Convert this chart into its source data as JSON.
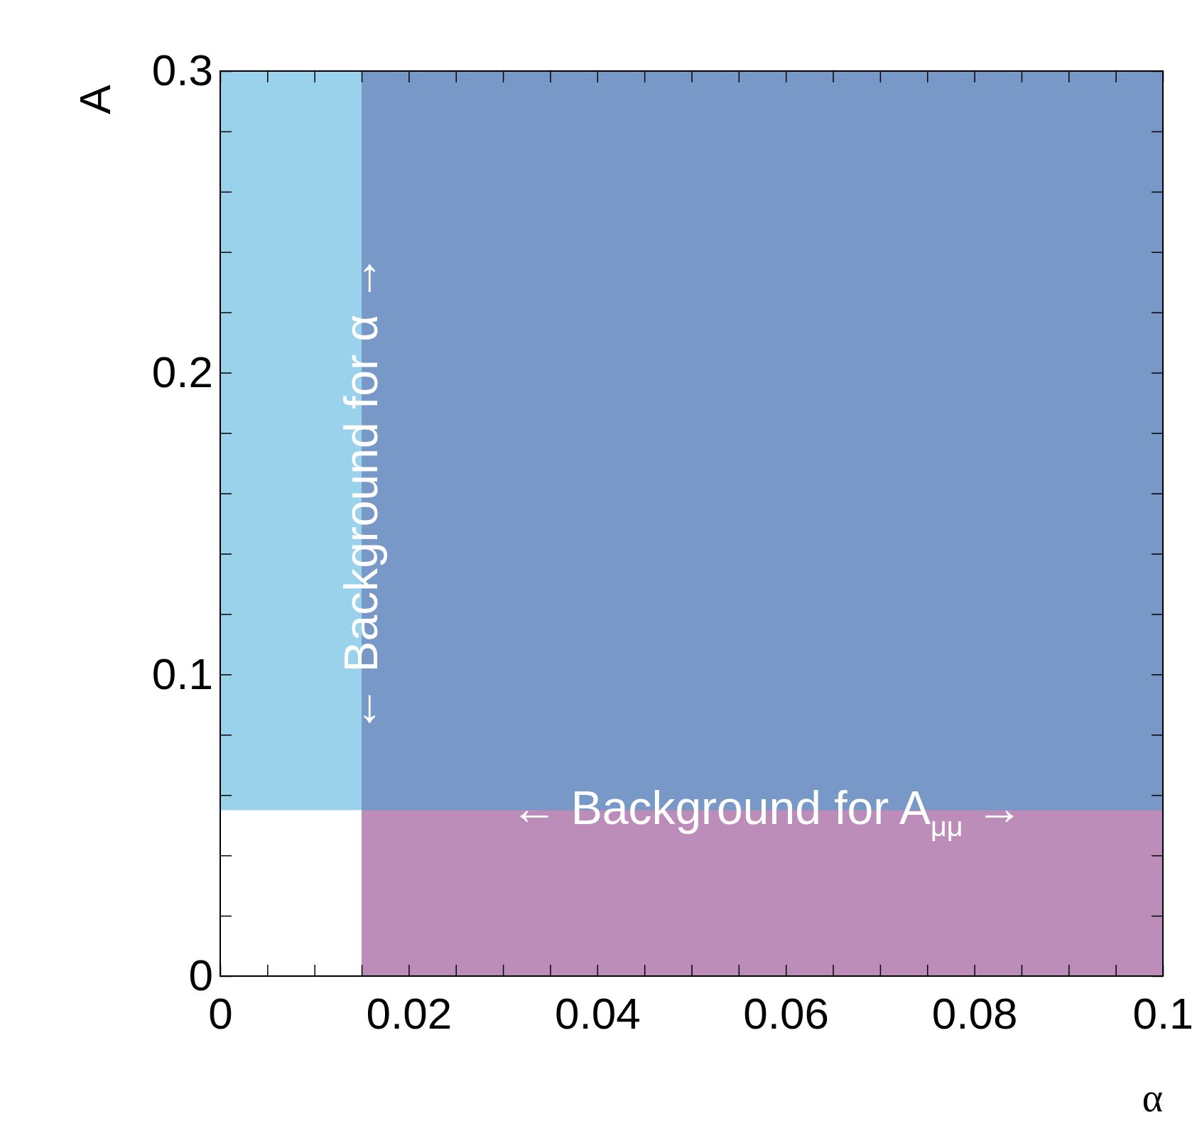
{
  "chart_data": {
    "type": "scatter",
    "xlabel": "α",
    "ylabel": "A",
    "xlim": [
      0,
      0.1
    ],
    "ylim": [
      0,
      0.3
    ],
    "xticks": [
      0,
      {
        "value": 0.005,
        "label": null
      },
      {
        "value": 0.01,
        "label": null
      },
      {
        "value": 0.015,
        "label": null
      },
      0.02,
      {
        "value": 0.025,
        "label": null
      },
      {
        "value": 0.03,
        "label": null
      },
      {
        "value": 0.035,
        "label": null
      },
      0.04,
      {
        "value": 0.045,
        "label": null
      },
      {
        "value": 0.05,
        "label": null
      },
      {
        "value": 0.055,
        "label": null
      },
      0.06,
      {
        "value": 0.065,
        "label": null
      },
      {
        "value": 0.07,
        "label": null
      },
      {
        "value": 0.075,
        "label": null
      },
      0.08,
      {
        "value": 0.085,
        "label": null
      },
      {
        "value": 0.09,
        "label": null
      },
      {
        "value": 0.095,
        "label": null
      },
      0.1
    ],
    "yticks": [
      0,
      {
        "value": 0.02,
        "label": null
      },
      {
        "value": 0.04,
        "label": null
      },
      {
        "value": 0.06,
        "label": null
      },
      {
        "value": 0.08,
        "label": null
      },
      0.1,
      {
        "value": 0.12,
        "label": null
      },
      {
        "value": 0.14,
        "label": null
      },
      {
        "value": 0.16,
        "label": null
      },
      {
        "value": 0.18,
        "label": null
      },
      0.2,
      {
        "value": 0.22,
        "label": null
      },
      {
        "value": 0.24,
        "label": null
      },
      {
        "value": 0.26,
        "label": null
      },
      {
        "value": 0.28,
        "label": null
      },
      0.3
    ],
    "bands": [
      {
        "axis": "x",
        "from": 0.015,
        "to": 0.1,
        "color": "#771b71"
      },
      {
        "axis": "y",
        "from": 0.055,
        "to": 0.3,
        "color": "#35a5d8"
      }
    ],
    "annotations": [
      {
        "text": "← Background for α →",
        "x": 0.015,
        "y": 0.16
      },
      {
        "text": "← Background for A$_{μμ}$ →",
        "x": 0.058,
        "y": 0.055
      }
    ]
  }
}
